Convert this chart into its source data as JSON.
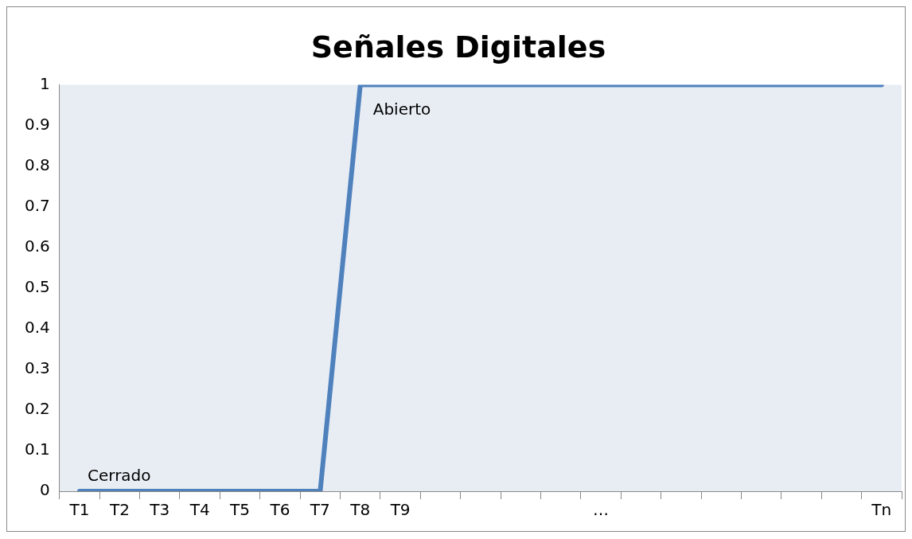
{
  "chart_data": {
    "type": "line",
    "title": "Señales Digitales",
    "categories": [
      "T1",
      "T2",
      "T3",
      "T4",
      "T5",
      "T6",
      "T7",
      "T8",
      "T9",
      null,
      null,
      null,
      null,
      "…",
      null,
      null,
      null,
      null,
      null,
      null,
      "Tn"
    ],
    "series": [
      {
        "color": "#4f81bd",
        "values": [
          0,
          0,
          0,
          0,
          0,
          0,
          0,
          1,
          1,
          1,
          1,
          1,
          1,
          1,
          1,
          1,
          1,
          1,
          1,
          1,
          1
        ]
      }
    ],
    "ylim": [
      0,
      1
    ],
    "yticks": [
      0,
      0.1,
      0.2,
      0.3,
      0.4,
      0.5,
      0.6,
      0.7,
      0.8,
      0.9,
      1
    ],
    "grid": false,
    "legend": false,
    "marker": "none",
    "line_style": "solid",
    "annotations": [
      {
        "text": "Cerrado",
        "x": "T1",
        "y": 0
      },
      {
        "text": "Abierto",
        "x": "T8",
        "y": 1
      }
    ]
  }
}
